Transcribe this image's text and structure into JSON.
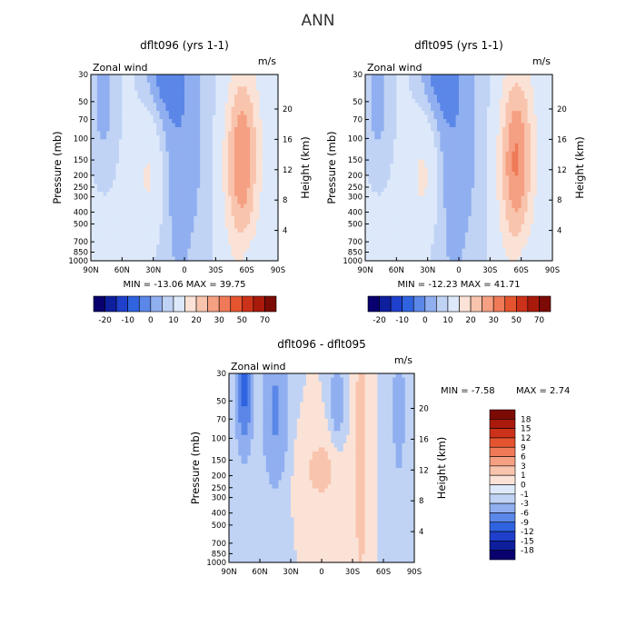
{
  "page_title": "ANN",
  "shared": {
    "xlabel": "",
    "ylabel": "Pressure (mb)",
    "y2label": "Height (km)",
    "field_label": "Zonal wind",
    "units": "m/s",
    "x_ticks": [
      "90N",
      "60N",
      "30N",
      "0",
      "30S",
      "60S",
      "90S"
    ],
    "pressure_ticks": [
      "30",
      "50",
      "70",
      "100",
      "150",
      "200",
      "250",
      "300",
      "400",
      "500",
      "700",
      "850",
      "1000"
    ],
    "height_ticks": [
      "20",
      "16",
      "12",
      "8",
      "4"
    ]
  },
  "colors": {
    "neg": [
      "#08006e",
      "#0e1f9e",
      "#1e40cc",
      "#2f63e0",
      "#5b87e8",
      "#90aff0",
      "#c0d3f5",
      "#dde9fa"
    ],
    "pos": [
      "#fbe2d6",
      "#f9c4ad",
      "#f5a082",
      "#f07a58",
      "#e4552f",
      "#cc3219",
      "#a91a0b",
      "#7c0b05"
    ]
  },
  "chart_data": [
    {
      "type": "heatmap",
      "title": "dflt096 (yrs 1-1)",
      "stats": "MIN = -13.06   MAX =  39.75",
      "x": [
        "90N",
        "60N",
        "30N",
        "0",
        "30S",
        "60S",
        "90S"
      ],
      "y": [
        "30",
        "50",
        "70",
        "100",
        "150",
        "200",
        "250",
        "300",
        "400",
        "500",
        "700",
        "850",
        "1000"
      ],
      "colorbar_levels": [
        "-20",
        "-10",
        "0",
        "10",
        "20",
        "30",
        "50",
        "70"
      ],
      "z_range": [
        -13.06,
        39.75
      ]
    },
    {
      "type": "heatmap",
      "title": "dflt095 (yrs 1-1)",
      "stats": "MIN = -12.23   MAX =  41.71",
      "x": [
        "90N",
        "60N",
        "30N",
        "0",
        "30S",
        "60S",
        "90S"
      ],
      "y": [
        "30",
        "50",
        "70",
        "100",
        "150",
        "200",
        "250",
        "300",
        "400",
        "500",
        "700",
        "850",
        "1000"
      ],
      "colorbar_levels": [
        "-20",
        "-10",
        "0",
        "10",
        "20",
        "30",
        "50",
        "70"
      ],
      "z_range": [
        -12.23,
        41.71
      ]
    },
    {
      "type": "heatmap",
      "title": "dflt096 - dflt095",
      "stats_min": "MIN =   -7.58",
      "stats_max": "MAX =    2.74",
      "x": [
        "90N",
        "60N",
        "30N",
        "0",
        "30S",
        "60S",
        "90S"
      ],
      "y": [
        "30",
        "50",
        "70",
        "100",
        "150",
        "200",
        "250",
        "300",
        "400",
        "500",
        "700",
        "850",
        "1000"
      ],
      "colorbar_levels": [
        "18",
        "15",
        "12",
        "9",
        "6",
        "3",
        "1",
        "0",
        "-1",
        "-3",
        "-6",
        "-9",
        "-12",
        "-15",
        "-18"
      ],
      "z_range": [
        -7.58,
        2.74
      ]
    }
  ]
}
